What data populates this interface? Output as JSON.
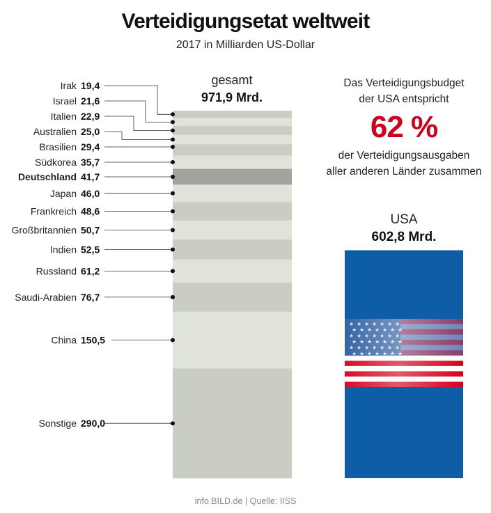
{
  "header": {
    "title": "Verteidigungsetat weltweit",
    "subtitle": "2017 in Milliarden US-Dollar"
  },
  "chart_data": {
    "type": "bar",
    "stacked": true,
    "total_label": "gesamt",
    "total_value": "971,9 Mrd.",
    "total": 971.9,
    "segments": [
      {
        "country": "Irak",
        "value": 19.4,
        "value_label": "19,4",
        "highlight": false
      },
      {
        "country": "Israel",
        "value": 21.6,
        "value_label": "21,6",
        "highlight": false
      },
      {
        "country": "Italien",
        "value": 22.9,
        "value_label": "22,9",
        "highlight": false
      },
      {
        "country": "Australien",
        "value": 25.0,
        "value_label": "25,0",
        "highlight": false
      },
      {
        "country": "Brasilien",
        "value": 29.4,
        "value_label": "29,4",
        "highlight": false
      },
      {
        "country": "Südkorea",
        "value": 35.7,
        "value_label": "35,7",
        "highlight": false
      },
      {
        "country": "Deutschland",
        "value": 41.7,
        "value_label": "41,7",
        "highlight": true
      },
      {
        "country": "Japan",
        "value": 46.0,
        "value_label": "46,0",
        "highlight": false
      },
      {
        "country": "Frankreich",
        "value": 48.6,
        "value_label": "48,6",
        "highlight": false
      },
      {
        "country": "Großbritannien",
        "value": 50.7,
        "value_label": "50,7",
        "highlight": false
      },
      {
        "country": "Indien",
        "value": 52.5,
        "value_label": "52,5",
        "highlight": false
      },
      {
        "country": "Russland",
        "value": 61.2,
        "value_label": "61,2",
        "highlight": false
      },
      {
        "country": "Saudi-Arabien",
        "value": 76.7,
        "value_label": "76,7",
        "highlight": false
      },
      {
        "country": "China",
        "value": 150.5,
        "value_label": "150,5",
        "highlight": false
      },
      {
        "country": "Sonstige",
        "value": 290.0,
        "value_label": "290,0",
        "highlight": false
      }
    ],
    "comparison": {
      "label": "USA",
      "value": 602.8,
      "value_label": "602,8 Mrd.",
      "share_percent": 62
    }
  },
  "note": {
    "line1": "Das Verteidigungsbudget",
    "line2": "der USA entspricht",
    "percent": "62 %",
    "line3": "der Verteidigungsausgaben",
    "line4": "aller anderen Länder zusammen"
  },
  "footer": {
    "source": "info.BILD.de | Quelle: IISS"
  },
  "colors": {
    "segment_light": "#dfe3d9",
    "segment_dark": "#c9cdc3",
    "highlight": "#a2a59e",
    "usa_blue": "#0e5da7",
    "flag_red": "#d3001c",
    "accent_red": "#d0001a"
  }
}
